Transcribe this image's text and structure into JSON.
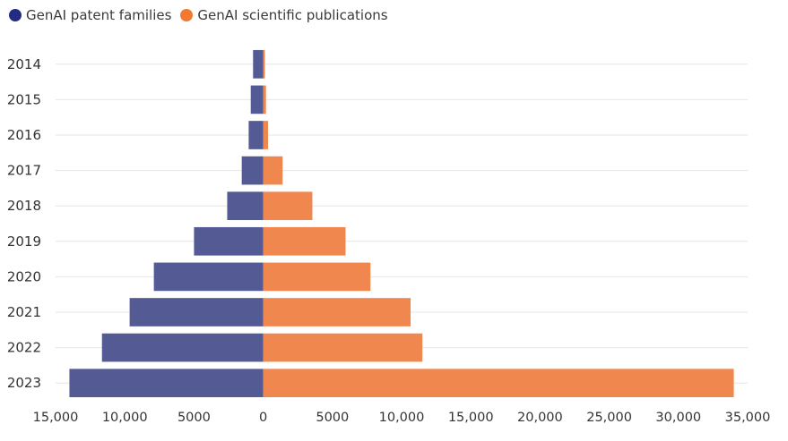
{
  "chart_data": {
    "type": "bar",
    "orientation": "horizontal-diverging",
    "title": "",
    "xlabel": "",
    "ylabel": "",
    "categories": [
      "2014",
      "2015",
      "2016",
      "2017",
      "2018",
      "2019",
      "2020",
      "2021",
      "2022",
      "2023"
    ],
    "series": [
      {
        "name": "GenAI patent families",
        "color": "#535a94",
        "side": "left",
        "values": [
          733,
          900,
          1050,
          1550,
          2600,
          5000,
          7900,
          9650,
          11650,
          14000
        ]
      },
      {
        "name": "GenAI scientific publications",
        "color": "#f0874e",
        "side": "right",
        "values": [
          120,
          200,
          350,
          1400,
          3550,
          5950,
          7750,
          10650,
          11500,
          34000
        ]
      }
    ],
    "xlim": [
      -15000,
      35000
    ],
    "xticks": [
      -15000,
      -10000,
      -5000,
      0,
      5000,
      10000,
      15000,
      20000,
      25000,
      30000,
      35000
    ],
    "xtick_labels": [
      "15,000",
      "10,000",
      "5000",
      "0",
      "5000",
      "10,000",
      "15,000",
      "20,000",
      "25,000",
      "30,000",
      "35,000"
    ],
    "grid": true,
    "legend_position": "top-left"
  }
}
